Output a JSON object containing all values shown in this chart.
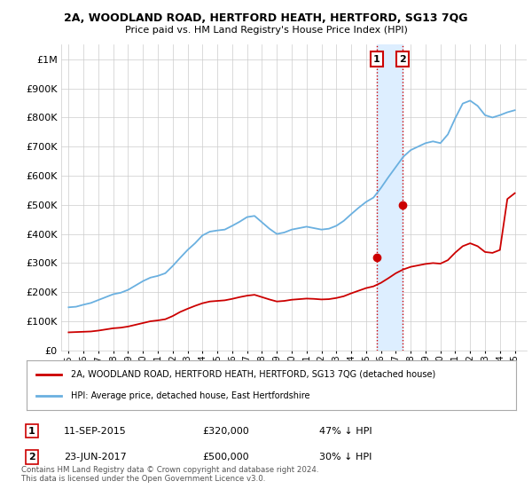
{
  "title": "2A, WOODLAND ROAD, HERTFORD HEATH, HERTFORD, SG13 7QG",
  "subtitle": "Price paid vs. HM Land Registry's House Price Index (HPI)",
  "hpi_label": "HPI: Average price, detached house, East Hertfordshire",
  "property_label": "2A, WOODLAND ROAD, HERTFORD HEATH, HERTFORD, SG13 7QG (detached house)",
  "footnote": "Contains HM Land Registry data © Crown copyright and database right 2024.\nThis data is licensed under the Open Government Licence v3.0.",
  "sale1": {
    "date": "11-SEP-2015",
    "price": 320000,
    "label": "1",
    "pct": "47% ↓ HPI"
  },
  "sale2": {
    "date": "23-JUN-2017",
    "price": 500000,
    "label": "2",
    "pct": "30% ↓ HPI"
  },
  "hpi_color": "#6ab0e0",
  "price_color": "#cc0000",
  "highlight_color": "#ddeeff",
  "ylim_max": 1050000,
  "background_color": "#ffffff",
  "grid_color": "#cccccc",
  "years_hpi": [
    1995.0,
    1995.5,
    1996.0,
    1996.5,
    1997.0,
    1997.5,
    1998.0,
    1998.5,
    1999.0,
    1999.5,
    2000.0,
    2000.5,
    2001.0,
    2001.5,
    2002.0,
    2002.5,
    2003.0,
    2003.5,
    2004.0,
    2004.5,
    2005.0,
    2005.5,
    2006.0,
    2006.5,
    2007.0,
    2007.5,
    2008.0,
    2008.5,
    2009.0,
    2009.5,
    2010.0,
    2010.5,
    2011.0,
    2011.5,
    2012.0,
    2012.5,
    2013.0,
    2013.5,
    2014.0,
    2014.5,
    2015.0,
    2015.5,
    2016.0,
    2016.5,
    2017.0,
    2017.5,
    2018.0,
    2018.5,
    2019.0,
    2019.5,
    2020.0,
    2020.5,
    2021.0,
    2021.5,
    2022.0,
    2022.5,
    2023.0,
    2023.5,
    2024.0,
    2024.5,
    2025.0
  ],
  "hpi_values": [
    148000,
    150000,
    157000,
    163000,
    173000,
    183000,
    193000,
    198000,
    208000,
    223000,
    238000,
    250000,
    256000,
    265000,
    290000,
    318000,
    345000,
    368000,
    395000,
    408000,
    412000,
    415000,
    428000,
    442000,
    458000,
    462000,
    440000,
    418000,
    400000,
    405000,
    415000,
    420000,
    425000,
    420000,
    415000,
    418000,
    428000,
    445000,
    468000,
    490000,
    510000,
    525000,
    558000,
    595000,
    630000,
    665000,
    688000,
    700000,
    712000,
    718000,
    712000,
    742000,
    798000,
    848000,
    858000,
    840000,
    808000,
    800000,
    808000,
    818000,
    825000
  ],
  "price_values": [
    62000,
    63000,
    64000,
    65000,
    68000,
    72000,
    76000,
    78000,
    82000,
    88000,
    94000,
    100000,
    103000,
    107000,
    118000,
    132000,
    143000,
    153000,
    162000,
    168000,
    170000,
    172000,
    177000,
    183000,
    188000,
    191000,
    183000,
    175000,
    168000,
    170000,
    174000,
    176000,
    178000,
    177000,
    175000,
    176000,
    180000,
    186000,
    196000,
    205000,
    214000,
    220000,
    232000,
    248000,
    265000,
    278000,
    287000,
    292000,
    297000,
    300000,
    298000,
    310000,
    336000,
    358000,
    368000,
    358000,
    338000,
    335000,
    345000,
    520000,
    540000
  ],
  "sale1_x": 2015.708,
  "sale1_y": 320000,
  "sale2_x": 2017.458,
  "sale2_y": 500000,
  "yticks": [
    0,
    100000,
    200000,
    300000,
    400000,
    500000,
    600000,
    700000,
    800000,
    900000,
    1000000
  ],
  "ytick_labels": [
    "£0",
    "£100K",
    "£200K",
    "£300K",
    "£400K",
    "£500K",
    "£600K",
    "£700K",
    "£800K",
    "£900K",
    "£1M"
  ],
  "xlim": [
    1994.5,
    2025.8
  ],
  "xticks": [
    1995,
    1996,
    1997,
    1998,
    1999,
    2000,
    2001,
    2002,
    2003,
    2004,
    2005,
    2006,
    2007,
    2008,
    2009,
    2010,
    2011,
    2012,
    2013,
    2014,
    2015,
    2016,
    2017,
    2018,
    2019,
    2020,
    2021,
    2022,
    2023,
    2024,
    2025
  ]
}
